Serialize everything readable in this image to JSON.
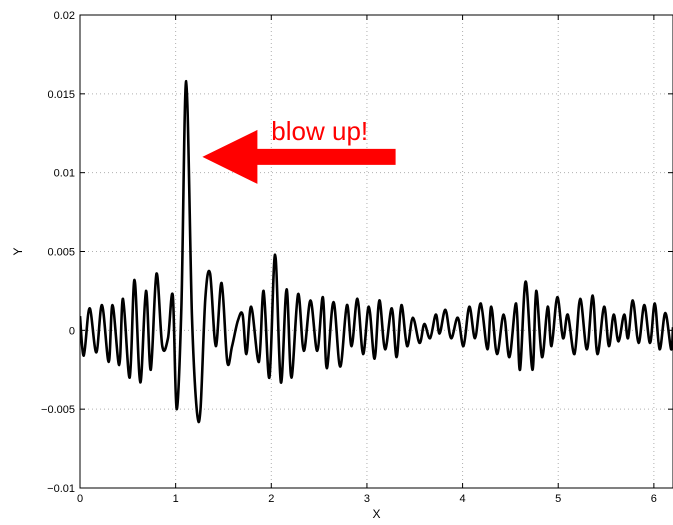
{
  "chart_data": {
    "type": "line",
    "title": "",
    "xlabel": "X",
    "ylabel": "Y",
    "xlim": [
      0,
      6.2
    ],
    "ylim": [
      -0.01,
      0.02
    ],
    "xticks": [
      0,
      1,
      2,
      3,
      4,
      5,
      6
    ],
    "xtick_labels": [
      "0",
      "1",
      "2",
      "3",
      "4",
      "5",
      "6"
    ],
    "yticks": [
      -0.01,
      -0.005,
      0,
      0.005,
      0.01,
      0.015,
      0.02
    ],
    "ytick_labels": [
      "−0.01",
      "−0.005",
      "0",
      "0.005",
      "0.01",
      "0.015",
      "0.02"
    ],
    "grid": true,
    "grid_style": "dotted",
    "line_color": "#000000",
    "series": [
      {
        "x": [
          0.0,
          0.04,
          0.1,
          0.17,
          0.23,
          0.3,
          0.34,
          0.41,
          0.45,
          0.52,
          0.57,
          0.63,
          0.69,
          0.74,
          0.8,
          0.86,
          0.92,
          0.97,
          1.01,
          1.06,
          1.11,
          1.17,
          1.22,
          1.26,
          1.31,
          1.36,
          1.42,
          1.48,
          1.54,
          1.59,
          1.65,
          1.7,
          1.74,
          1.79,
          1.87,
          1.92,
          1.98,
          2.04,
          2.1,
          2.16,
          2.21,
          2.28,
          2.34,
          2.41,
          2.48,
          2.54,
          2.58,
          2.65,
          2.72,
          2.79,
          2.84,
          2.9,
          2.96,
          3.02,
          3.08,
          3.13,
          3.19,
          3.26,
          3.31,
          3.36,
          3.42,
          3.48,
          3.55,
          3.6,
          3.66,
          3.72,
          3.76,
          3.82,
          3.88,
          3.95,
          4.01,
          4.07,
          4.13,
          4.19,
          4.26,
          4.3,
          4.36,
          4.43,
          4.49,
          4.56,
          4.6,
          4.66,
          4.73,
          4.77,
          4.83,
          4.89,
          4.93,
          4.99,
          5.05,
          5.1,
          5.17,
          5.23,
          5.3,
          5.36,
          5.41,
          5.48,
          5.53,
          5.58,
          5.63,
          5.69,
          5.73,
          5.78,
          5.84,
          5.9,
          5.96,
          6.01,
          6.06,
          6.12,
          6.18,
          6.2
        ],
        "y": [
          0.0009,
          -0.0016,
          0.0014,
          -0.0014,
          0.0016,
          -0.002,
          0.0016,
          -0.0022,
          0.002,
          -0.003,
          0.0032,
          -0.0033,
          0.0025,
          -0.0025,
          0.0036,
          -0.001,
          -0.0005,
          0.0022,
          -0.005,
          0.0015,
          0.0158,
          0.001,
          -0.005,
          -0.005,
          0.002,
          0.0036,
          -0.001,
          0.003,
          -0.002,
          -0.001,
          0.0006,
          0.001,
          -0.0015,
          0.0015,
          -0.002,
          0.0025,
          -0.003,
          0.0048,
          -0.0033,
          0.0026,
          -0.003,
          0.0023,
          -0.0013,
          0.0019,
          -0.0013,
          0.0021,
          -0.0024,
          0.0018,
          -0.0023,
          0.0016,
          -0.001,
          0.002,
          -0.0015,
          0.0015,
          -0.0018,
          0.0019,
          -0.0012,
          0.0014,
          -0.0017,
          0.0016,
          -0.001,
          0.0008,
          -0.0008,
          0.0004,
          -0.0005,
          0.001,
          -0.0002,
          0.0013,
          -0.0005,
          0.0008,
          -0.001,
          0.0015,
          -0.0005,
          0.0017,
          -0.0012,
          0.0015,
          -0.0015,
          0.001,
          -0.0017,
          0.0017,
          -0.0025,
          0.0031,
          -0.0025,
          0.0025,
          -0.0017,
          0.0015,
          -0.001,
          0.0021,
          -0.0005,
          0.001,
          -0.0015,
          0.002,
          -0.0012,
          0.0022,
          -0.0015,
          0.0015,
          -0.001,
          0.001,
          -0.0007,
          0.001,
          -0.0005,
          0.0019,
          -0.0008,
          0.0016,
          -0.0008,
          0.0017,
          -0.0012,
          0.0011,
          -0.0012,
          0.0002
        ]
      }
    ],
    "annotations": [
      {
        "text": "blow up!",
        "color": "#ff0000",
        "arrow": {
          "from": [
            3.3,
            0.011
          ],
          "to": [
            1.28,
            0.011
          ]
        }
      }
    ]
  }
}
